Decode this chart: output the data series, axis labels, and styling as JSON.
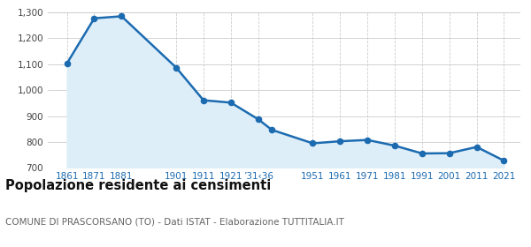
{
  "years": [
    1861,
    1871,
    1881,
    1901,
    1911,
    1921,
    1931,
    1936,
    1951,
    1961,
    1971,
    1981,
    1991,
    2001,
    2011,
    2021
  ],
  "population": [
    1103,
    1277,
    1285,
    1087,
    961,
    952,
    888,
    847,
    795,
    803,
    808,
    786,
    756,
    757,
    781,
    728
  ],
  "line_color": "#1c6bb0",
  "fill_color": "#ddeef9",
  "marker_color": "#1c6bb0",
  "bg_color": "#ffffff",
  "grid_color": "#cccccc",
  "grid_color_x": "#cccccc",
  "title": "Popolazione residente ai censimenti",
  "subtitle": "COMUNE DI PRASCORSANO (TO) - Dati ISTAT - Elaborazione TUTTITALIA.IT",
  "ylim": [
    700,
    1300
  ],
  "yticks": [
    700,
    800,
    900,
    1000,
    1100,
    1200,
    1300
  ],
  "ytick_labels": [
    "700",
    "800",
    "900",
    "1,000",
    "1,100",
    "1,200",
    "1,300"
  ],
  "x_tick_positions": [
    1861,
    1871,
    1881,
    1901,
    1911,
    1921,
    1931,
    1951,
    1961,
    1971,
    1981,
    1991,
    2001,
    2011,
    2021
  ],
  "x_tick_labels": [
    "1861",
    "1871",
    "1881",
    "1901",
    "1911",
    "1921",
    "’31‹36",
    "1951",
    "1961",
    "1971",
    "1981",
    "1991",
    "2001",
    "2011",
    "2021"
  ],
  "xlim_left": 1854,
  "xlim_right": 2027,
  "title_fontsize": 10.5,
  "subtitle_fontsize": 7.5,
  "tick_fontsize": 7.5,
  "marker_size": 20,
  "linewidth": 1.8
}
